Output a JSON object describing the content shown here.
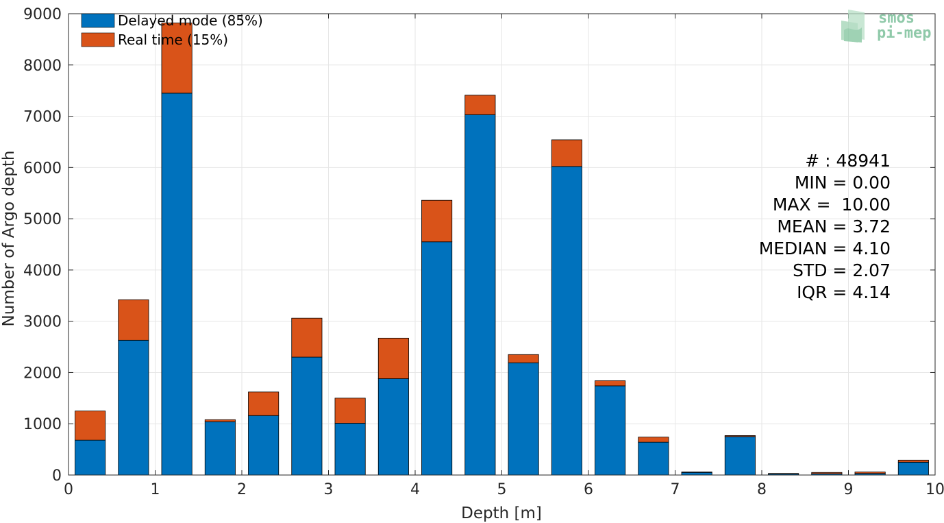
{
  "chart_data": {
    "type": "bar",
    "stacked": true,
    "xlabel": "Depth [m]",
    "ylabel": "Number of Argo depth",
    "xlim": [
      0,
      10
    ],
    "ylim": [
      0,
      9000
    ],
    "xticks": [
      0,
      1,
      2,
      3,
      4,
      5,
      6,
      7,
      8,
      9,
      10
    ],
    "yticks": [
      0,
      1000,
      2000,
      3000,
      4000,
      5000,
      6000,
      7000,
      8000,
      9000
    ],
    "grid": true,
    "legend_position": "top-left",
    "bin_width": 0.5,
    "bin_centers": [
      0.25,
      0.75,
      1.25,
      1.75,
      2.25,
      2.75,
      3.25,
      3.75,
      4.25,
      4.75,
      5.25,
      5.75,
      6.25,
      6.75,
      7.25,
      7.75,
      8.25,
      8.75,
      9.25,
      9.75
    ],
    "series": [
      {
        "name": "Delayed mode (85%)",
        "color": "#0072bd",
        "values": [
          680,
          2630,
          7450,
          1040,
          1160,
          2300,
          1010,
          1880,
          4550,
          7030,
          2190,
          6020,
          1740,
          640,
          50,
          750,
          20,
          25,
          30,
          250
        ]
      },
      {
        "name": "Real time (15%)",
        "color": "#d95319",
        "values": [
          570,
          790,
          1370,
          40,
          460,
          760,
          490,
          790,
          810,
          380,
          160,
          520,
          100,
          100,
          10,
          20,
          10,
          25,
          30,
          40
        ]
      }
    ],
    "stats_lines": [
      "# : 48941",
      "MIN = 0.00",
      "MAX =  10.00",
      "MEAN = 3.72",
      "MEDIAN = 4.10",
      "STD = 2.07",
      "IQR = 4.14"
    ]
  },
  "logo": {
    "line1": "smos",
    "line2": "pi-mep",
    "color": "#8fc9a9"
  }
}
